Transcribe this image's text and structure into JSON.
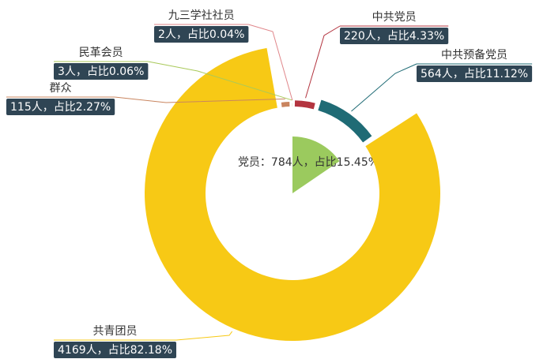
{
  "chart_data": {
    "type": "pie",
    "inner": {
      "value": 784,
      "percent": 15.45,
      "label": "党员：784人，占比15.45%",
      "color": "#9bca5e"
    },
    "categories": [
      "中共党员",
      "中共预备党员",
      "共青团员",
      "群众",
      "民革会员",
      "九三学社社员"
    ],
    "values": [
      220,
      564,
      4169,
      115,
      3,
      2
    ],
    "value_labels": [
      "220人，占比4.33%",
      "564人，占比11.12%",
      "4169人，占比82.18%",
      "115人，占比2.27%",
      "3人，占比0.06%",
      "2人，占比0.04%"
    ],
    "colors": [
      "#b3343f",
      "#1f6b75",
      "#f7c915",
      "#c9855f",
      "#a9c95a",
      "#e0868a"
    ]
  }
}
